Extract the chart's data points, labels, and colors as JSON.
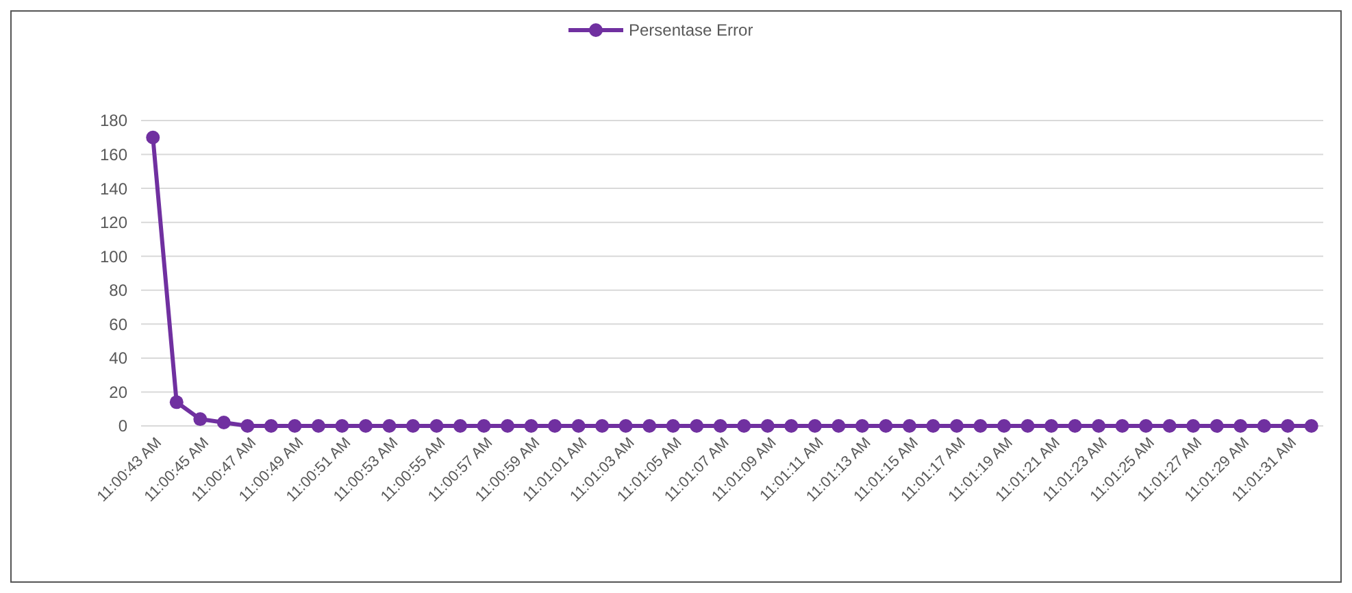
{
  "chart_data": {
    "type": "line",
    "categories": [
      "11:00:43 AM",
      null,
      "11:00:45 AM",
      null,
      "11:00:47 AM",
      null,
      "11:00:49 AM",
      null,
      "11:00:51 AM",
      null,
      "11:00:53 AM",
      null,
      "11:00:55 AM",
      null,
      "11:00:57 AM",
      null,
      "11:00:59 AM",
      null,
      "11:01:01 AM",
      null,
      "11:01:03 AM",
      null,
      "11:01:05 AM",
      null,
      "11:01:07 AM",
      null,
      "11:01:09 AM",
      null,
      "11:01:11 AM",
      null,
      "11:01:13 AM",
      null,
      "11:01:15 AM",
      null,
      "11:01:17 AM",
      null,
      "11:01:19 AM",
      null,
      "11:01:21 AM",
      null,
      "11:01:23 AM",
      null,
      "11:01:25 AM",
      null,
      "11:01:27 AM",
      null,
      "11:01:29 AM",
      null,
      "11:01:31 AM",
      null
    ],
    "series": [
      {
        "name": "Persentase Error",
        "color": "#7030a0",
        "values": [
          170,
          14,
          4,
          2,
          0,
          0,
          0,
          0,
          0,
          0,
          0,
          0,
          0,
          0,
          0,
          0,
          0,
          0,
          0,
          0,
          0,
          0,
          0,
          0,
          0,
          0,
          0,
          0,
          0,
          0,
          0,
          0,
          0,
          0,
          0,
          0,
          0,
          0,
          0,
          0,
          0,
          0,
          0,
          0,
          0,
          0,
          0,
          0,
          0,
          0
        ]
      }
    ],
    "ylim": [
      0,
      180
    ],
    "yticks": [
      0,
      20,
      40,
      60,
      80,
      100,
      120,
      140,
      160,
      180
    ],
    "grid": "y",
    "legend": "top",
    "marker": "circle",
    "line_style": "solid"
  }
}
